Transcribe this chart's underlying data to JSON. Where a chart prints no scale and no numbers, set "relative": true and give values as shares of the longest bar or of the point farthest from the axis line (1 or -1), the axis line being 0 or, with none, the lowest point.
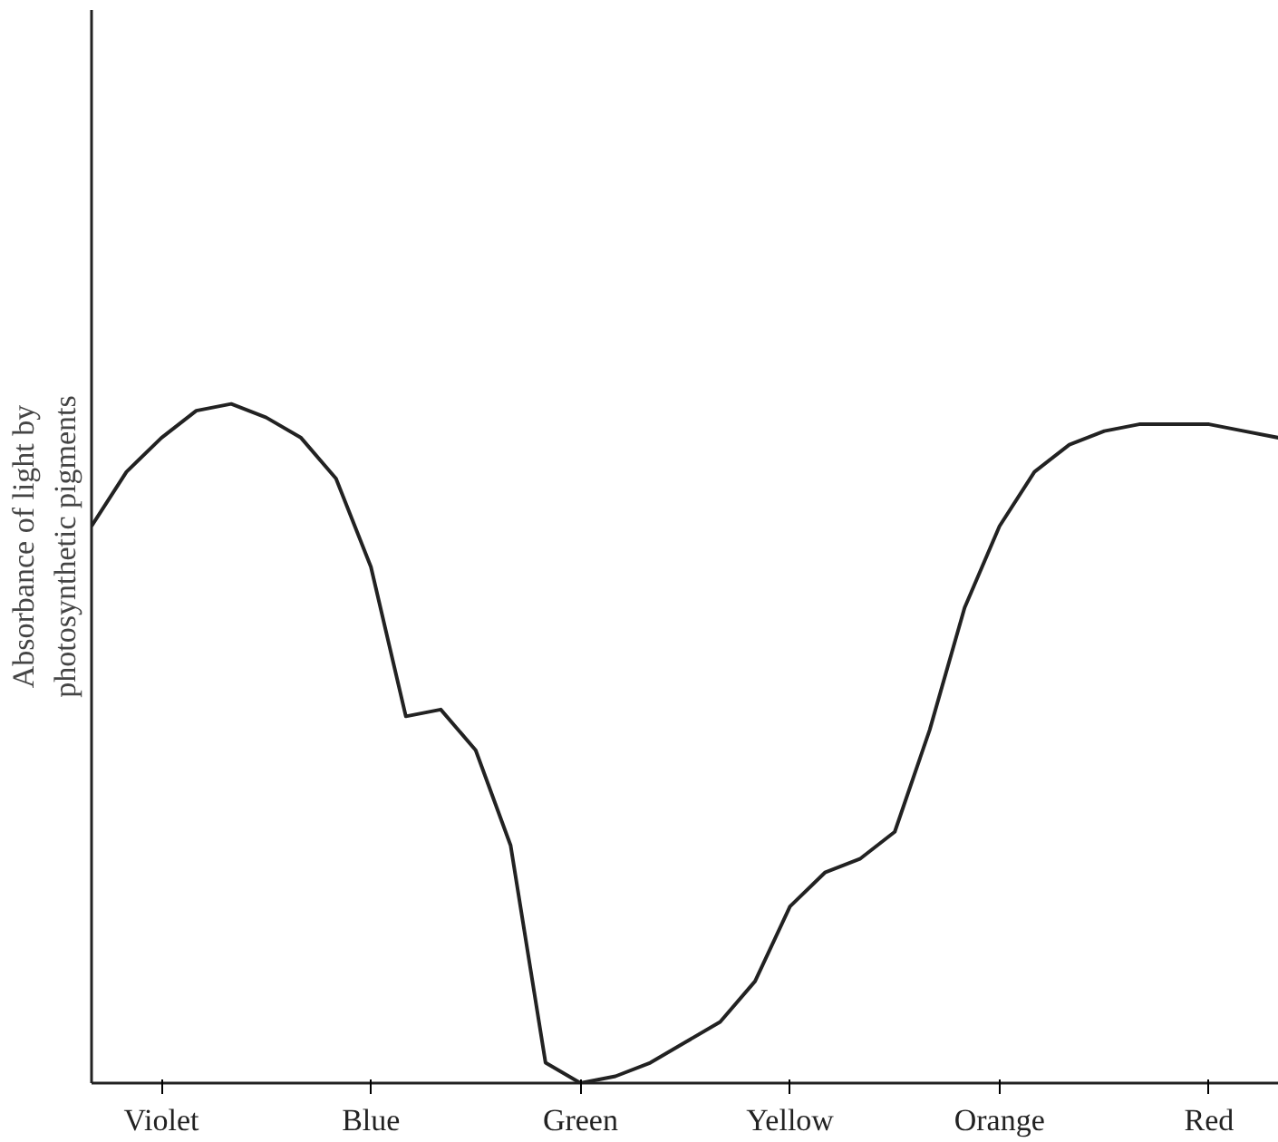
{
  "chart_data": {
    "type": "line",
    "relative": true,
    "ylabel": "Absorbance of light by\nphotosynthetic pigments",
    "categories": [
      null,
      null,
      "Violet",
      null,
      null,
      null,
      null,
      null,
      "Blue",
      null,
      null,
      null,
      null,
      null,
      "Green",
      null,
      null,
      null,
      null,
      null,
      "Yellow",
      null,
      null,
      null,
      null,
      null,
      "Orange",
      null,
      null,
      null,
      null,
      null,
      "Red",
      null,
      null
    ],
    "values": [
      0.82,
      0.9,
      0.95,
      0.99,
      1.0,
      0.98,
      0.95,
      0.89,
      0.76,
      0.54,
      0.55,
      0.49,
      0.35,
      0.03,
      0.0,
      0.01,
      0.03,
      0.06,
      0.09,
      0.15,
      0.26,
      0.31,
      0.33,
      0.37,
      0.52,
      0.7,
      0.82,
      0.9,
      0.94,
      0.96,
      0.97,
      0.97,
      0.97,
      0.96,
      0.95
    ],
    "color": "#222222",
    "grid": false,
    "line_style": "solid",
    "marker": "none"
  }
}
